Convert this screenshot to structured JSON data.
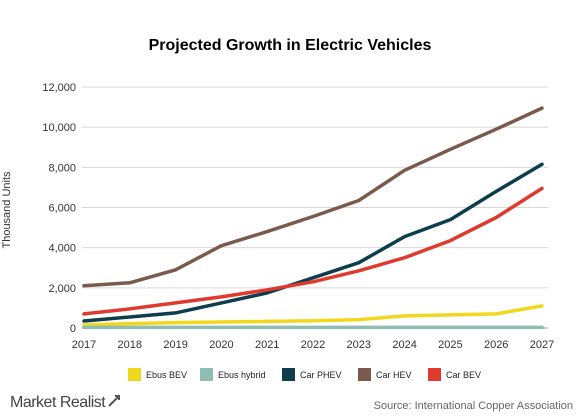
{
  "chart_data": {
    "type": "line",
    "title": "Projected Growth in Electric Vehicles",
    "xlabel": "",
    "ylabel": "Thousand Units",
    "x": [
      "2017",
      "2018",
      "2019",
      "2020",
      "2021",
      "2022",
      "2023",
      "2024",
      "2025",
      "2026",
      "2027"
    ],
    "ylim": [
      0,
      12000
    ],
    "yticks": [
      0,
      2000,
      4000,
      6000,
      8000,
      10000,
      12000
    ],
    "ytick_labels": [
      "0",
      "2,000",
      "4,000",
      "6,000",
      "8,000",
      "10,000",
      "12,000"
    ],
    "grid": "horizontal",
    "legend_position": "bottom",
    "series": [
      {
        "name": "Ebus BEV",
        "color": "#f2d81d",
        "values": [
          150,
          220,
          270,
          300,
          330,
          360,
          420,
          600,
          650,
          700,
          1100
        ]
      },
      {
        "name": "Ebus hybrid",
        "color": "#8fbcb3",
        "values": [
          30,
          30,
          30,
          30,
          30,
          30,
          30,
          30,
          30,
          30,
          30
        ]
      },
      {
        "name": "Car PHEV",
        "color": "#0f3d4b",
        "values": [
          350,
          550,
          750,
          1250,
          1750,
          2500,
          3250,
          4550,
          5400,
          6800,
          8150
        ]
      },
      {
        "name": "Car HEV",
        "color": "#7a5a4c",
        "values": [
          2100,
          2250,
          2900,
          4100,
          4800,
          5550,
          6350,
          7850,
          8900,
          9900,
          10950
        ]
      },
      {
        "name": "Car BEV",
        "color": "#e03a2f",
        "values": [
          700,
          950,
          1250,
          1550,
          1900,
          2300,
          2850,
          3500,
          4350,
          5500,
          6950
        ]
      }
    ]
  },
  "footer": {
    "brand": "Market Realist",
    "source": "Source: International  Copper Association"
  }
}
